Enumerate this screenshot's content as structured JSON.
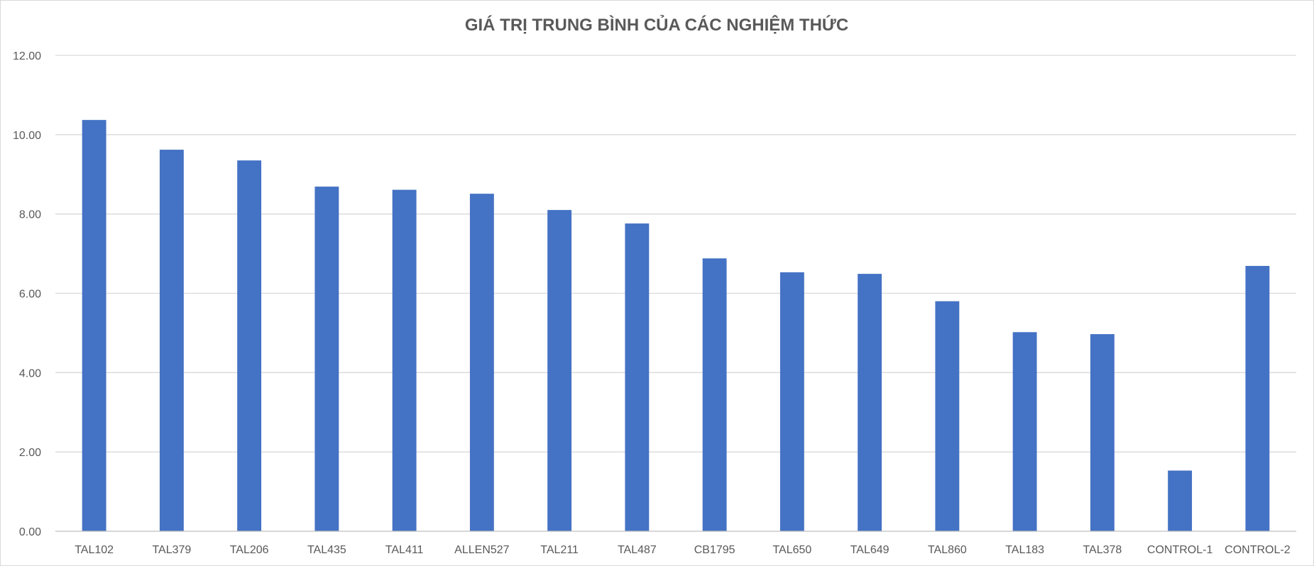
{
  "chart_data": {
    "type": "bar",
    "title": "GIÁ TRỊ TRUNG BÌNH CỦA CÁC NGHIỆM THỨC",
    "xlabel": "",
    "ylabel": "",
    "categories": [
      "TAL102",
      "TAL379",
      "TAL206",
      "TAL435",
      "TAL411",
      "ALLEN527",
      "TAL211",
      "TAL487",
      "CB1795",
      "TAL650",
      "TAL649",
      "TAL860",
      "TAL183",
      "TAL378",
      "CONTROL-1",
      "CONTROL-2"
    ],
    "values": [
      10.37,
      9.62,
      9.35,
      8.69,
      8.61,
      8.51,
      8.1,
      7.76,
      6.88,
      6.53,
      6.49,
      5.8,
      5.02,
      4.97,
      1.53,
      6.69
    ],
    "ylim": [
      0,
      12
    ],
    "yticks": [
      0,
      2,
      4,
      6,
      8,
      10,
      12
    ],
    "ytick_labels": [
      "0.00",
      "2.00",
      "4.00",
      "6.00",
      "8.00",
      "10.00",
      "12.00"
    ],
    "grid": true,
    "legend": "none",
    "bar_color": "#4472C4"
  }
}
